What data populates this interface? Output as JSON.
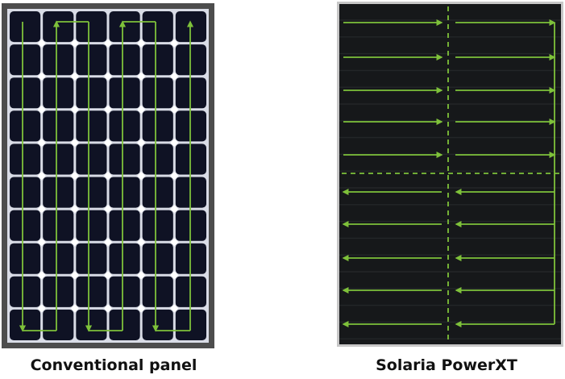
{
  "panels": [
    {
      "caption": "Conventional panel",
      "current_flow": "serpentine",
      "strings": 6,
      "cell_rows": 10
    },
    {
      "caption": "Solaria PowerXT",
      "current_flow": "parallel",
      "quadrants": 4,
      "strips_per_quadrant": 5
    }
  ],
  "colors": {
    "background": "#ffffff",
    "frame": "#4d4d4d",
    "cell": "#0f1224",
    "cell_gap": "#d9dce6",
    "powerxt_cell": "#16181a",
    "powerxt_line": "#232628",
    "arrow": "#7ec13a"
  }
}
